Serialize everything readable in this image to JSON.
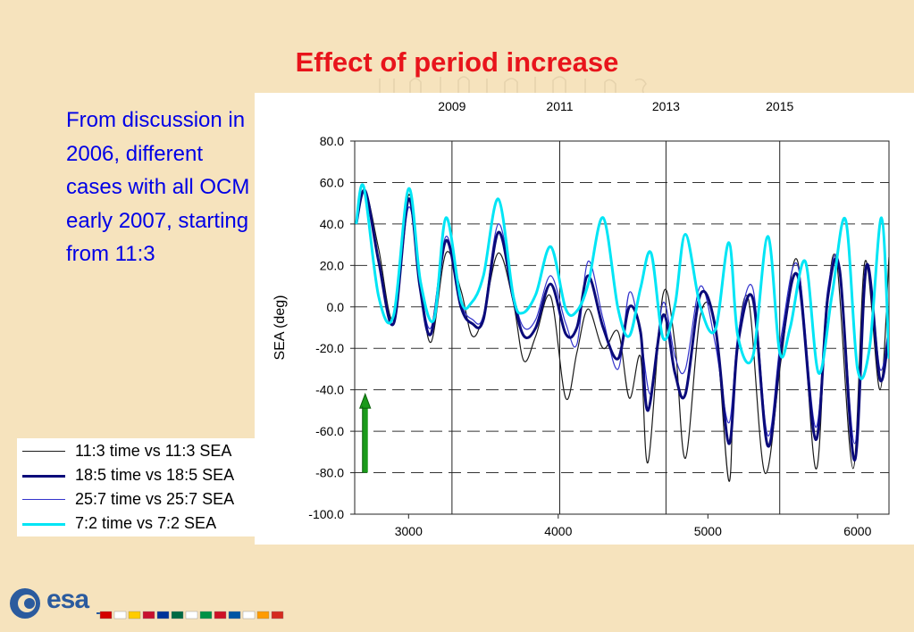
{
  "slide": {
    "title": "Effect of period increase",
    "body_text": "From discussion in 2006, different cases with all OCM early 2007, starting from 11:3"
  },
  "logo": {
    "text": "esa",
    "flags": [
      "#d40000",
      "#ffffff",
      "#ffcc00",
      "#c8102e",
      "#003399",
      "#006a44",
      "#ffffff",
      "#009246",
      "#ce1126",
      "#0055a4",
      "#ffffff",
      "#ff9b00",
      "#d52b1e"
    ]
  },
  "chart_data": {
    "type": "line",
    "xlabel": "",
    "ylabel": "SEA (deg)",
    "xlim": [
      2640,
      6210
    ],
    "ylim": [
      -100,
      80
    ],
    "x_ticks": [
      3000,
      4000,
      5000,
      6000
    ],
    "y_ticks": [
      "80.0",
      "60.0",
      "40.0",
      "20.0",
      "0.0",
      "-20.0",
      "-40.0",
      "-60.0",
      "-80.0",
      "-100.0"
    ],
    "dashed_gridlines_y": [
      60,
      40,
      20,
      0,
      -20,
      -40,
      -60,
      -80
    ],
    "top_axis": [
      {
        "label": "2009",
        "x": 3290
      },
      {
        "label": "2011",
        "x": 4010
      },
      {
        "label": "2013",
        "x": 4720
      },
      {
        "label": "2015",
        "x": 5480
      }
    ],
    "annotation": {
      "type": "arrow",
      "color": "#1a9a1a",
      "x": 2710,
      "y_from": -80,
      "y_to": -42
    },
    "series": [
      {
        "name": "11:3 time vs 11:3 SEA",
        "color": "#1a1a1a",
        "width": 1.2,
        "x": [
          2650,
          2710,
          2800,
          2900,
          3000,
          3075,
          3150,
          3250,
          3350,
          3425,
          3500,
          3600,
          3700,
          3770,
          3850,
          3950,
          4050,
          4125,
          4200,
          4300,
          4400,
          4475,
          4550,
          4600,
          4700,
          4780,
          4850,
          4950,
          5050,
          5140,
          5180,
          5270,
          5380,
          5490,
          5600,
          5720,
          5790,
          5860,
          5970,
          6050,
          6150,
          6210
        ],
        "y": [
          40,
          56,
          28,
          -6,
          54,
          14,
          -17,
          26,
          8,
          -14,
          -4,
          26,
          2,
          -26,
          -14,
          5,
          -44,
          -22,
          -1,
          -20,
          -12,
          -44,
          -24,
          -75,
          6,
          -18,
          -73,
          -4,
          -10,
          -84,
          -30,
          4,
          -80,
          -25,
          22,
          -78,
          -5,
          22,
          -78,
          22,
          -40,
          24
        ]
      },
      {
        "name": "18:5 time vs 18:5 SEA",
        "color": "#0a0a7a",
        "width": 3,
        "x": [
          2650,
          2710,
          2800,
          2900,
          3000,
          3075,
          3150,
          3250,
          3350,
          3425,
          3500,
          3600,
          3700,
          3770,
          3850,
          3950,
          4050,
          4125,
          4200,
          4300,
          4400,
          4475,
          4550,
          4600,
          4700,
          4780,
          4850,
          4950,
          5050,
          5140,
          5200,
          5300,
          5400,
          5490,
          5600,
          5720,
          5800,
          5880,
          5980,
          6060,
          6150,
          6210
        ],
        "y": [
          40,
          56,
          22,
          -8,
          52,
          10,
          -13,
          32,
          0,
          -8,
          -6,
          36,
          4,
          -14,
          -10,
          11,
          -13,
          -10,
          15,
          -10,
          -25,
          0,
          -12,
          -50,
          -4,
          -32,
          -42,
          6,
          -10,
          -66,
          -18,
          4,
          -67,
          -20,
          15,
          -64,
          4,
          18,
          -74,
          20,
          -35,
          -12
        ]
      },
      {
        "name": "25:7 time vs 25:7 SEA",
        "color": "#3333cc",
        "width": 1.2,
        "x": [
          2650,
          2710,
          2800,
          2900,
          3000,
          3075,
          3150,
          3250,
          3350,
          3425,
          3500,
          3600,
          3700,
          3770,
          3850,
          3950,
          4050,
          4125,
          4200,
          4300,
          4400,
          4475,
          4550,
          4620,
          4700,
          4780,
          4850,
          4950,
          5050,
          5140,
          5200,
          5300,
          5400,
          5490,
          5600,
          5720,
          5800,
          5880,
          5980,
          6060,
          6150,
          6210
        ],
        "y": [
          40,
          56,
          22,
          -8,
          48,
          12,
          -10,
          34,
          2,
          -6,
          -4,
          40,
          6,
          -10,
          -6,
          15,
          -8,
          -18,
          22,
          -6,
          -30,
          7,
          -14,
          -42,
          2,
          -24,
          -30,
          10,
          -18,
          -56,
          -14,
          9,
          -62,
          -14,
          20,
          -58,
          8,
          20,
          -66,
          20,
          -30,
          -8
        ]
      },
      {
        "name": "7:2 time vs 7:2 SEA",
        "color": "#00e5f5",
        "width": 3,
        "x": [
          2650,
          2700,
          2800,
          2900,
          3000,
          3080,
          3170,
          3250,
          3350,
          3420,
          3500,
          3600,
          3700,
          3760,
          3850,
          3950,
          4050,
          4125,
          4200,
          4300,
          4400,
          4475,
          4550,
          4620,
          4700,
          4780,
          4850,
          4950,
          5050,
          5140,
          5200,
          5300,
          5400,
          5480,
          5550,
          5650,
          5740,
          5830,
          5920,
          6000,
          6080,
          6160,
          6210
        ],
        "y": [
          40,
          58,
          5,
          -4,
          57,
          12,
          -6,
          43,
          3,
          2,
          15,
          52,
          5,
          -3,
          6,
          29,
          -1,
          -2,
          11,
          43,
          -1,
          -14,
          9,
          26,
          -15,
          1,
          35,
          0,
          -11,
          31,
          -14,
          -24,
          34,
          -22,
          -10,
          22,
          -32,
          6,
          42,
          -30,
          -20,
          43,
          -25
        ]
      }
    ]
  }
}
